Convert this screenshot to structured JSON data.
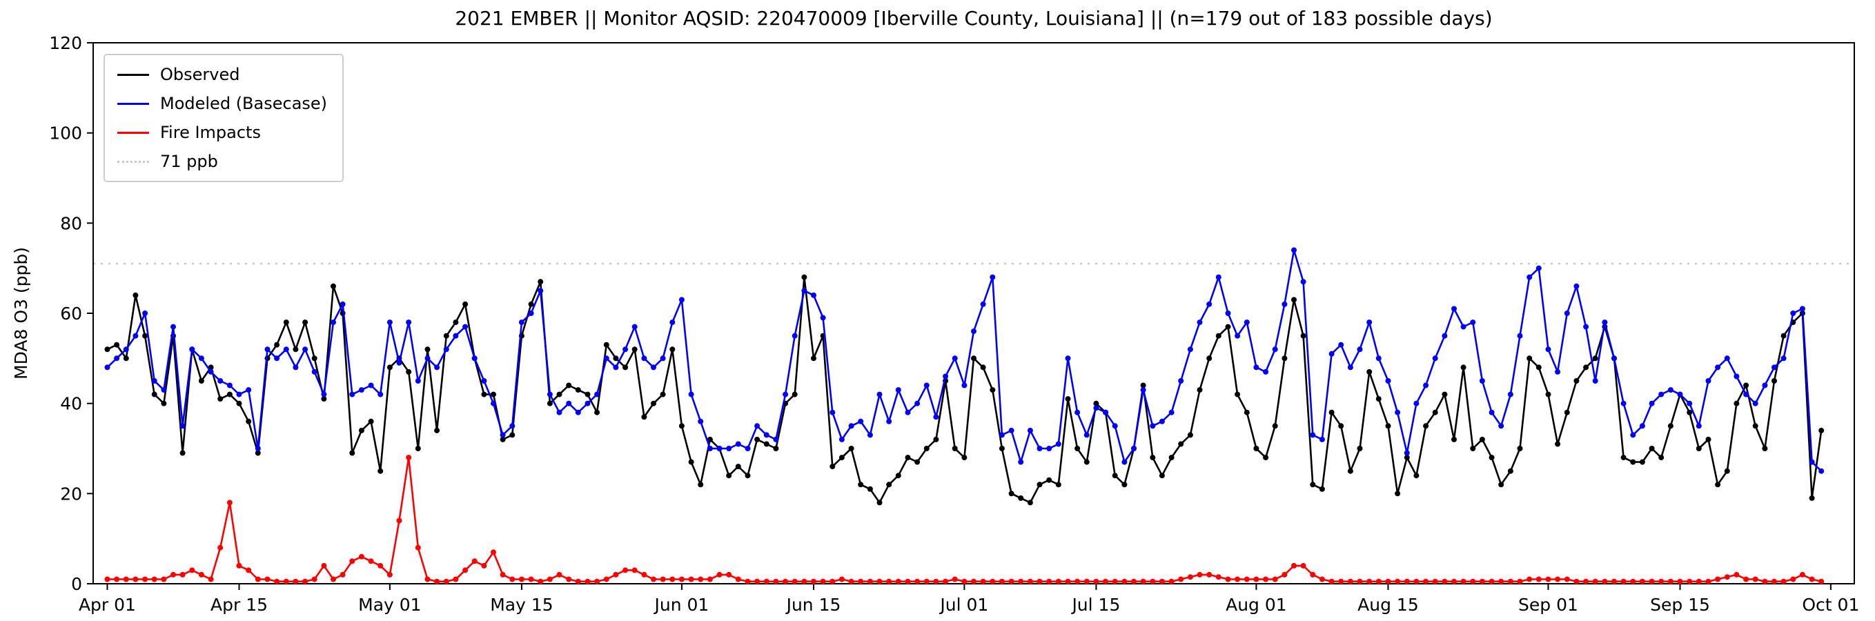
{
  "title": "2021 EMBER || Monitor AQSID: 220470009 [Iberville County, Louisiana] || (n=179 out of 183 possible days)",
  "chart_data": {
    "type": "line",
    "title": "2021 EMBER || Monitor AQSID: 220470009 [Iberville County, Louisiana] || (n=179 out of 183 possible days)",
    "xlabel": "",
    "ylabel": "MDA8 O3 (ppb)",
    "ylim": [
      0,
      120
    ],
    "yticks": [
      0,
      20,
      40,
      60,
      80,
      100,
      120
    ],
    "x_tick_labels": [
      "Apr 01",
      "Apr 15",
      "May 01",
      "May 15",
      "Jun 01",
      "Jun 15",
      "Jul 01",
      "Jul 15",
      "Aug 01",
      "Aug 15",
      "Sep 01",
      "Sep 15",
      "Oct 01"
    ],
    "x_tick_positions": [
      0,
      14,
      30,
      44,
      61,
      75,
      91,
      105,
      122,
      136,
      153,
      167,
      183
    ],
    "grid": false,
    "legend_position": "upper left",
    "threshold": {
      "value": 71,
      "label": "71 ppb",
      "color": "#c8c8c8",
      "style": "dotted"
    },
    "series": [
      {
        "name": "Observed",
        "color": "#000000",
        "values": [
          52,
          53,
          50,
          64,
          55,
          42,
          40,
          55,
          29,
          52,
          45,
          48,
          41,
          42,
          40,
          36,
          29,
          50,
          53,
          58,
          52,
          58,
          50,
          41,
          66,
          60,
          29,
          34,
          36,
          25,
          48,
          50,
          47,
          30,
          52,
          34,
          55,
          58,
          62,
          50,
          42,
          42,
          32,
          33,
          55,
          62,
          67,
          40,
          42,
          44,
          43,
          42,
          38,
          53,
          50,
          48,
          52,
          37,
          40,
          42,
          52,
          35,
          27,
          22,
          32,
          30,
          24,
          26,
          24,
          32,
          31,
          30,
          40,
          42,
          68,
          50,
          55,
          26,
          28,
          30,
          22,
          21,
          18,
          22,
          24,
          28,
          27,
          30,
          32,
          45,
          30,
          28,
          50,
          48,
          43,
          30,
          20,
          19,
          18,
          22,
          23,
          22,
          41,
          30,
          27,
          40,
          38,
          24,
          22,
          30,
          44,
          28,
          24,
          28,
          31,
          33,
          43,
          50,
          55,
          57,
          42,
          38,
          30,
          28,
          35,
          50,
          63,
          55,
          22,
          21,
          38,
          35,
          25,
          30,
          47,
          41,
          35,
          20,
          28,
          24,
          35,
          38,
          42,
          32,
          48,
          30,
          32,
          28,
          22,
          25,
          30,
          50,
          48,
          42,
          31,
          38,
          45,
          48,
          50,
          57,
          50,
          28,
          27,
          27,
          30,
          28,
          35,
          42,
          38,
          30,
          32,
          22,
          25,
          40,
          44,
          35,
          30,
          45,
          55,
          58,
          60,
          19,
          34
        ]
      },
      {
        "name": "Modeled (Basecase)",
        "color": "#0000ff",
        "values": [
          48,
          50,
          52,
          55,
          60,
          45,
          43,
          57,
          35,
          52,
          50,
          47,
          45,
          44,
          42,
          43,
          30,
          52,
          50,
          52,
          48,
          52,
          47,
          42,
          58,
          62,
          42,
          43,
          44,
          42,
          58,
          49,
          58,
          45,
          50,
          48,
          52,
          55,
          57,
          50,
          45,
          40,
          33,
          35,
          58,
          60,
          65,
          42,
          38,
          40,
          38,
          40,
          42,
          50,
          48,
          52,
          57,
          50,
          48,
          50,
          58,
          63,
          42,
          36,
          30,
          30,
          30,
          31,
          30,
          35,
          33,
          32,
          42,
          55,
          65,
          64,
          59,
          38,
          32,
          35,
          36,
          33,
          42,
          36,
          43,
          38,
          40,
          44,
          37,
          46,
          50,
          44,
          56,
          62,
          68,
          33,
          34,
          27,
          34,
          30,
          30,
          31,
          50,
          38,
          33,
          39,
          38,
          35,
          27,
          30,
          43,
          35,
          36,
          38,
          45,
          52,
          58,
          62,
          68,
          60,
          55,
          58,
          48,
          47,
          52,
          62,
          74,
          67,
          33,
          32,
          51,
          53,
          48,
          52,
          58,
          50,
          45,
          38,
          29,
          40,
          44,
          50,
          55,
          61,
          57,
          58,
          45,
          38,
          35,
          42,
          55,
          68,
          70,
          52,
          47,
          60,
          66,
          57,
          45,
          58,
          50,
          40,
          33,
          35,
          40,
          42,
          43,
          42,
          40,
          35,
          45,
          48,
          50,
          46,
          42,
          40,
          44,
          48,
          50,
          60,
          61,
          27,
          25
        ]
      },
      {
        "name": "Fire Impacts",
        "color": "#ff0000",
        "values": [
          1,
          1,
          1,
          1,
          1,
          1,
          1,
          2,
          2,
          3,
          2,
          1,
          8,
          18,
          4,
          3,
          1,
          1,
          0.5,
          0.5,
          0.5,
          0.5,
          1,
          4,
          1,
          2,
          5,
          6,
          5,
          4,
          2,
          14,
          28,
          8,
          1,
          0.5,
          0.5,
          1,
          3,
          5,
          4,
          7,
          2,
          1,
          1,
          1,
          0.5,
          1,
          2,
          1,
          0.5,
          0.5,
          0.5,
          1,
          2,
          3,
          3,
          2,
          1,
          1,
          1,
          1,
          1,
          1,
          1,
          2,
          2,
          1,
          0.5,
          0.5,
          0.5,
          0.5,
          0.5,
          0.5,
          0.5,
          0.5,
          0.5,
          0.5,
          1,
          0.5,
          0.5,
          0.5,
          0.5,
          0.5,
          0.5,
          0.5,
          0.5,
          0.5,
          0.5,
          0.5,
          1,
          0.5,
          0.5,
          0.5,
          0.5,
          0.5,
          0.5,
          0.5,
          0.5,
          0.5,
          0.5,
          0.5,
          0.5,
          0.5,
          0.5,
          0.5,
          0.5,
          0.5,
          0.5,
          0.5,
          0.5,
          0.5,
          0.5,
          0.5,
          1,
          1.5,
          2,
          2,
          1.5,
          1,
          1,
          1,
          1,
          1,
          1,
          2,
          4,
          4,
          2,
          1,
          0.5,
          0.5,
          0.5,
          0.5,
          0.5,
          0.5,
          0.5,
          0.5,
          0.5,
          0.5,
          0.5,
          0.5,
          0.5,
          0.5,
          0.5,
          0.5,
          0.5,
          0.5,
          0.5,
          0.5,
          0.5,
          1,
          1,
          1,
          1,
          1,
          0.5,
          0.5,
          0.5,
          0.5,
          0.5,
          0.5,
          0.5,
          0.5,
          0.5,
          0.5,
          0.5,
          0.5,
          0.5,
          0.5,
          0.5,
          1,
          1.5,
          2,
          1,
          1,
          0.5,
          0.5,
          0.5,
          1,
          2,
          1,
          0.5
        ]
      }
    ]
  }
}
